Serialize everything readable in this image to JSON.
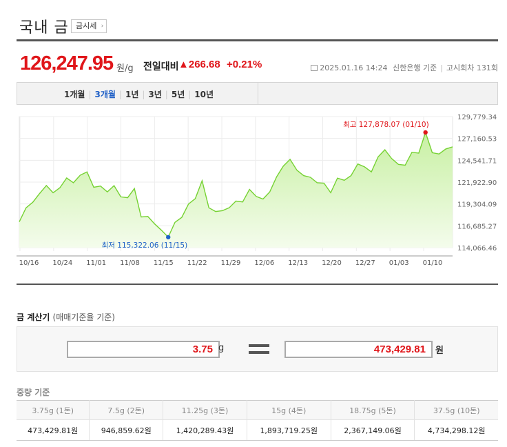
{
  "header": {
    "title": "국내 금",
    "tag_label": "금시세",
    "tag_arrow": "›"
  },
  "price": {
    "value": "126,247.95",
    "unit": "원/g",
    "change_label": "전일대비",
    "change_value": "▲266.68",
    "change_percent": "+0.21%",
    "timestamp": "2025.01.16 14:24",
    "source": "신한은행 기준",
    "round": "고시회차 131회"
  },
  "tabs": [
    "1개월",
    "3개월",
    "1년",
    "3년",
    "5년",
    "10년"
  ],
  "active_tab": "3개월",
  "colors": {
    "up": "#e0161a",
    "line": "#76d233",
    "fill_top": "#c8f0a3",
    "fill_bottom": "#f4fcec",
    "max_dot": "#e0161a",
    "min_dot": "#1f63c8",
    "active_tab": "#1e5fc6"
  },
  "chart_data": {
    "type": "area",
    "y_ticks": [
      "129,779.34",
      "127,160.53",
      "124,541.71",
      "121,922.90",
      "119,304.09",
      "116,685.27",
      "114,066.46"
    ],
    "ylim": [
      114066.46,
      129779.34
    ],
    "x_ticks": [
      "10/16",
      "10/24",
      "11/01",
      "11/08",
      "11/15",
      "11/22",
      "11/29",
      "12/06",
      "12/13",
      "12/20",
      "12/27",
      "01/03",
      "01/10"
    ],
    "series": [
      {
        "values": [
          117160,
          118840,
          119520,
          120560,
          121520,
          120650,
          121250,
          122420,
          121850,
          122760,
          123150,
          121300,
          121450,
          120750,
          121500,
          120150,
          120050,
          121150,
          117750,
          117800,
          116900,
          116150,
          115322.06,
          117100,
          117700,
          119300,
          119950,
          122100,
          118850,
          118400,
          118500,
          118850,
          119650,
          119550,
          121050,
          120200,
          119900,
          120750,
          122550,
          123850,
          124650,
          123350,
          122700,
          122500,
          121850,
          121800,
          120650,
          122400,
          122150,
          122700,
          124100,
          123750,
          123150,
          124950,
          125800,
          124750,
          124050,
          123950,
          125500,
          125400,
          127878.07,
          125450,
          125300,
          125900,
          126150
        ]
      }
    ],
    "max": {
      "value": 127878.07,
      "label": "최고 127,878.07 (01/10)"
    },
    "min": {
      "value": 115322.06,
      "label": "최저 115,322.06 (11/15)"
    }
  },
  "calculator": {
    "title": "금 계산기",
    "subtitle": "(매매기준율 기준)",
    "weight_value": "3.75",
    "weight_unit": "g",
    "amount_value": "473,429.81",
    "amount_unit": "원"
  },
  "weights": {
    "title": "중량 기준",
    "columns": [
      {
        "header": "3.75g (1돈)",
        "value": "473,429.81원"
      },
      {
        "header": "7.5g (2돈)",
        "value": "946,859.62원"
      },
      {
        "header": "11.25g (3돈)",
        "value": "1,420,289.43원"
      },
      {
        "header": "15g (4돈)",
        "value": "1,893,719.25원"
      },
      {
        "header": "18.75g (5돈)",
        "value": "2,367,149.06원"
      },
      {
        "header": "37.5g (10돈)",
        "value": "4,734,298.12원"
      }
    ]
  }
}
